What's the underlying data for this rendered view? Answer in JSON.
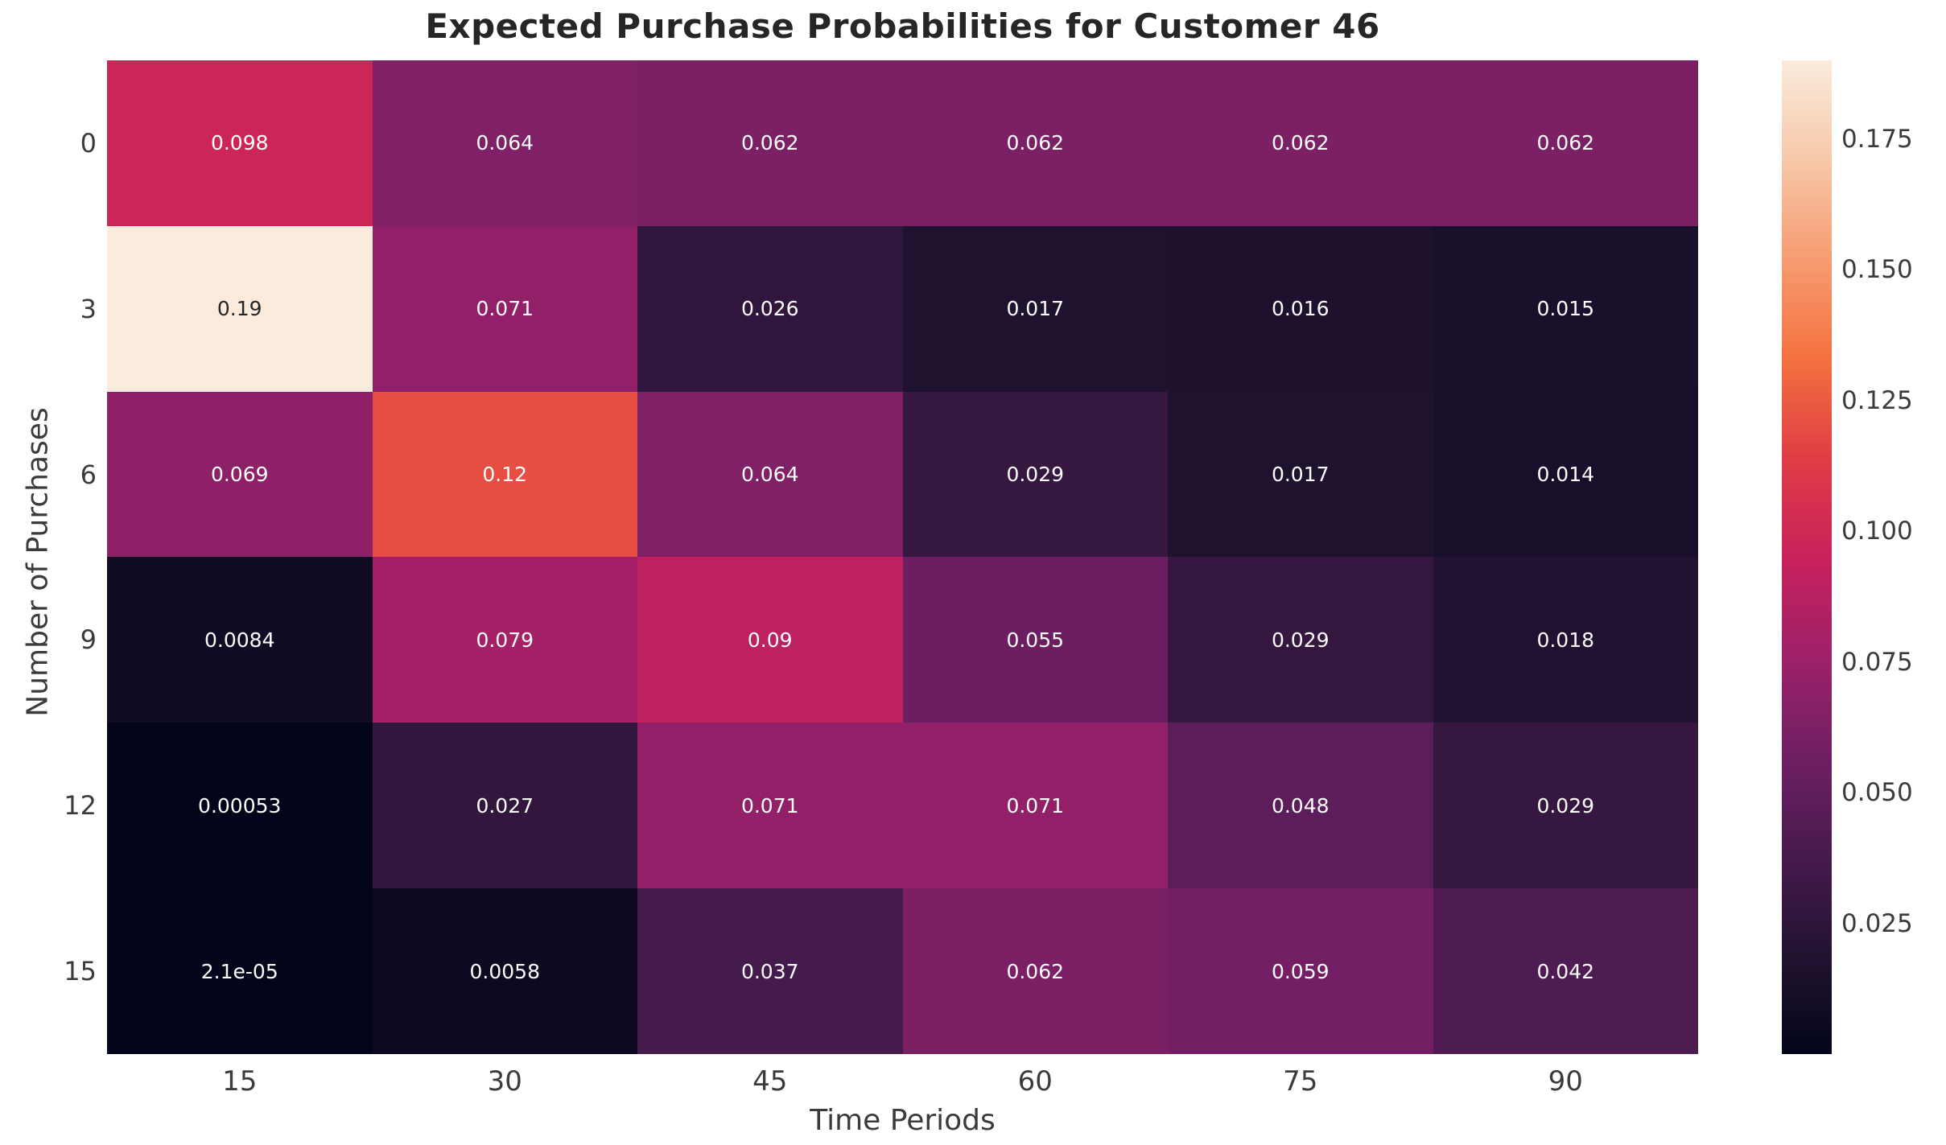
{
  "colors": {
    "background": "#ffffff",
    "title_color": "#262626",
    "tick_color": "#3b3b3b",
    "annotation_light": "#ffffff",
    "annotation_dark": "#262626"
  },
  "chart_data": {
    "type": "heatmap",
    "title": "Expected Purchase Probabilities for Customer 46",
    "xlabel": "Time Periods",
    "ylabel": "Number of Purchases",
    "x_ticklabels": [
      "15",
      "30",
      "45",
      "60",
      "75",
      "90"
    ],
    "y_ticklabels": [
      "0",
      "3",
      "6",
      "9",
      "12",
      "15"
    ],
    "values": [
      [
        0.098,
        0.064,
        0.062,
        0.062,
        0.062,
        0.062
      ],
      [
        0.19,
        0.071,
        0.026,
        0.017,
        0.016,
        0.015
      ],
      [
        0.069,
        0.12,
        0.064,
        0.029,
        0.017,
        0.014
      ],
      [
        0.0084,
        0.079,
        0.09,
        0.055,
        0.029,
        0.018
      ],
      [
        0.00053,
        0.027,
        0.071,
        0.071,
        0.048,
        0.029
      ],
      [
        2.1e-05,
        0.0058,
        0.037,
        0.062,
        0.059,
        0.042
      ]
    ],
    "cell_labels": [
      [
        "0.098",
        "0.064",
        "0.062",
        "0.062",
        "0.062",
        "0.062"
      ],
      [
        "0.19",
        "0.071",
        "0.026",
        "0.017",
        "0.016",
        "0.015"
      ],
      [
        "0.069",
        "0.12",
        "0.064",
        "0.029",
        "0.017",
        "0.014"
      ],
      [
        "0.0084",
        "0.079",
        "0.09",
        "0.055",
        "0.029",
        "0.018"
      ],
      [
        "0.00053",
        "0.027",
        "0.071",
        "0.071",
        "0.048",
        "0.029"
      ],
      [
        "2.1e-05",
        "0.0058",
        "0.037",
        "0.062",
        "0.059",
        "0.042"
      ]
    ],
    "vmin": 2.1e-05,
    "vmax": 0.19,
    "grid": false,
    "legend_position": "right-colorbar",
    "colorbar": {
      "tick_values": [
        0.175,
        0.15,
        0.125,
        0.1,
        0.075,
        0.05,
        0.025
      ],
      "tick_labels": [
        "0.175",
        "0.150",
        "0.125",
        "0.100",
        "0.075",
        "0.050",
        "0.025"
      ]
    },
    "colormap": {
      "name": "rocket",
      "stops": [
        {
          "t": 0.0,
          "color": "#03051A"
        },
        {
          "t": 0.1,
          "color": "#221331"
        },
        {
          "t": 0.2,
          "color": "#471A4E"
        },
        {
          "t": 0.3,
          "color": "#6F1F64"
        },
        {
          "t": 0.4,
          "color": "#9E2169"
        },
        {
          "t": 0.5,
          "color": "#C8215B"
        },
        {
          "t": 0.6,
          "color": "#E03D45"
        },
        {
          "t": 0.7,
          "color": "#F3713F"
        },
        {
          "t": 0.8,
          "color": "#F79C72"
        },
        {
          "t": 0.9,
          "color": "#F7C8A9"
        },
        {
          "t": 1.0,
          "color": "#FAEBDC"
        }
      ]
    }
  }
}
